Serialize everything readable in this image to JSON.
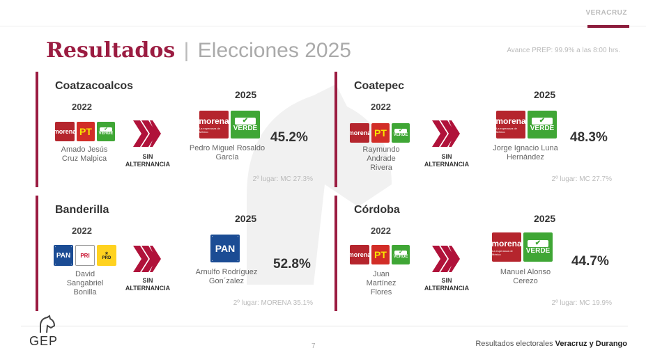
{
  "header": {
    "region": "VERACRUZ",
    "title_main": "Resultados",
    "title_sep": "|",
    "title_sub": "Elecciones 2025",
    "prep_note": "Avance PREP: 99.9% a las 8:00 hrs."
  },
  "labels": {
    "sin_line1": "SIN",
    "sin_line2": "ALTERNANCIA"
  },
  "cards": [
    {
      "name": "Coatzacoalcos",
      "prev_year": "2022",
      "prev_parties": [
        "morena",
        "PT",
        "VERDE"
      ],
      "prev_candidate_1": "Amado Jesús",
      "prev_candidate_2": "Cruz Malpica",
      "prev_candidate_3": "",
      "new_year": "2025",
      "new_parties": [
        "morena",
        "VERDE"
      ],
      "winner_1": "Pedro Miguel Rosaldo",
      "winner_2": "García",
      "percent": "45.2%",
      "second_place": "2º lugar: MC 27.3%"
    },
    {
      "name": "Coatepec",
      "prev_year": "2022",
      "prev_parties": [
        "morena",
        "PT",
        "VERDE"
      ],
      "prev_candidate_1": "Raymundo",
      "prev_candidate_2": "Andrade",
      "prev_candidate_3": "Rivera",
      "new_year": "2025",
      "new_parties": [
        "morena",
        "VERDE"
      ],
      "winner_1": "Jorge Ignacio Luna",
      "winner_2": "Hernández",
      "percent": "48.3%",
      "second_place": "2º lugar: MC 27.7%"
    },
    {
      "name": "Banderilla",
      "prev_year": "2022",
      "prev_parties": [
        "PAN",
        "PRI",
        "PRD"
      ],
      "prev_candidate_1": "David",
      "prev_candidate_2": "Sangabriel",
      "prev_candidate_3": "Bonilla",
      "new_year": "2025",
      "new_parties": [
        "PAN"
      ],
      "winner_1": "Arnulfo Rodríguez",
      "winner_2": "Gon´zalez",
      "percent": "52.8%",
      "second_place": "2º lugar: MORENA 35.1%"
    },
    {
      "name": "Córdoba",
      "prev_year": "2022",
      "prev_parties": [
        "morena",
        "PT",
        "VERDE"
      ],
      "prev_candidate_1": "Juan",
      "prev_candidate_2": "Martínez",
      "prev_candidate_3": "Flores",
      "new_year": "2025",
      "new_parties": [
        "morena",
        "VERDE"
      ],
      "winner_1": "Manuel Alonso",
      "winner_2": "Cerezo",
      "percent": "44.7%",
      "second_place": "2º lugar: MC 19.9%"
    }
  ],
  "party_logo_text": {
    "morena": "morena",
    "morena_tagline": "La esperanza de México",
    "pt": "PT",
    "verde": "VERDE",
    "pan": "PAN",
    "pri": "PRI",
    "prd": "PRD"
  },
  "footer": {
    "logo": "GEP",
    "page": "7",
    "text_prefix": "Resultados electorales",
    "text_bold": "Veracruz y Durango"
  },
  "colors": {
    "accent": "#9b1c41",
    "arrow": "#b0123a"
  }
}
